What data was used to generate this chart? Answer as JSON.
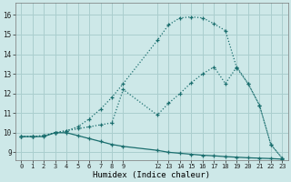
{
  "bg_color": "#cde8e8",
  "grid_color": "#aacece",
  "line_color": "#1a6e6e",
  "xlabel": "Humidex (Indice chaleur)",
  "ylabel_ticks": [
    9,
    10,
    11,
    12,
    13,
    14,
    15,
    16
  ],
  "xlabel_ticks": [
    0,
    1,
    2,
    3,
    4,
    5,
    6,
    7,
    8,
    9,
    12,
    13,
    14,
    15,
    16,
    17,
    18,
    19,
    20,
    21,
    22,
    23
  ],
  "xlim": [
    -0.5,
    23.5
  ],
  "ylim": [
    8.6,
    16.6
  ],
  "curve1_x": [
    0,
    1,
    2,
    3,
    4,
    5,
    6,
    7,
    8,
    9,
    12,
    13,
    14,
    15,
    16,
    17,
    18,
    19,
    20,
    21,
    22,
    23
  ],
  "curve1_y": [
    9.8,
    9.8,
    9.85,
    10.0,
    10.1,
    10.3,
    10.7,
    11.2,
    11.8,
    12.5,
    14.7,
    15.5,
    15.85,
    15.9,
    15.85,
    15.55,
    15.2,
    13.3,
    12.5,
    11.4,
    9.4,
    8.7
  ],
  "curve2_x": [
    0,
    1,
    2,
    3,
    4,
    5,
    6,
    7,
    8,
    9,
    12,
    13,
    14,
    15,
    16,
    17,
    18,
    19,
    20,
    21,
    22,
    23
  ],
  "curve2_y": [
    9.8,
    9.8,
    9.85,
    10.0,
    10.1,
    10.2,
    10.3,
    10.4,
    10.5,
    12.2,
    10.9,
    11.5,
    12.0,
    12.55,
    13.0,
    13.35,
    12.5,
    13.35,
    12.5,
    11.4,
    9.4,
    8.7
  ],
  "curve3_x": [
    0,
    1,
    2,
    3,
    4,
    5,
    6,
    7,
    8,
    9,
    12,
    13,
    14,
    15,
    16,
    17,
    18,
    19,
    20,
    21,
    22,
    23
  ],
  "curve3_y": [
    9.8,
    9.8,
    9.8,
    10.0,
    10.0,
    9.85,
    9.7,
    9.55,
    9.4,
    9.3,
    9.1,
    9.0,
    8.95,
    8.9,
    8.85,
    8.82,
    8.78,
    8.75,
    8.72,
    8.7,
    8.68,
    8.65
  ],
  "figsize": [
    3.2,
    2.0
  ],
  "dpi": 100
}
